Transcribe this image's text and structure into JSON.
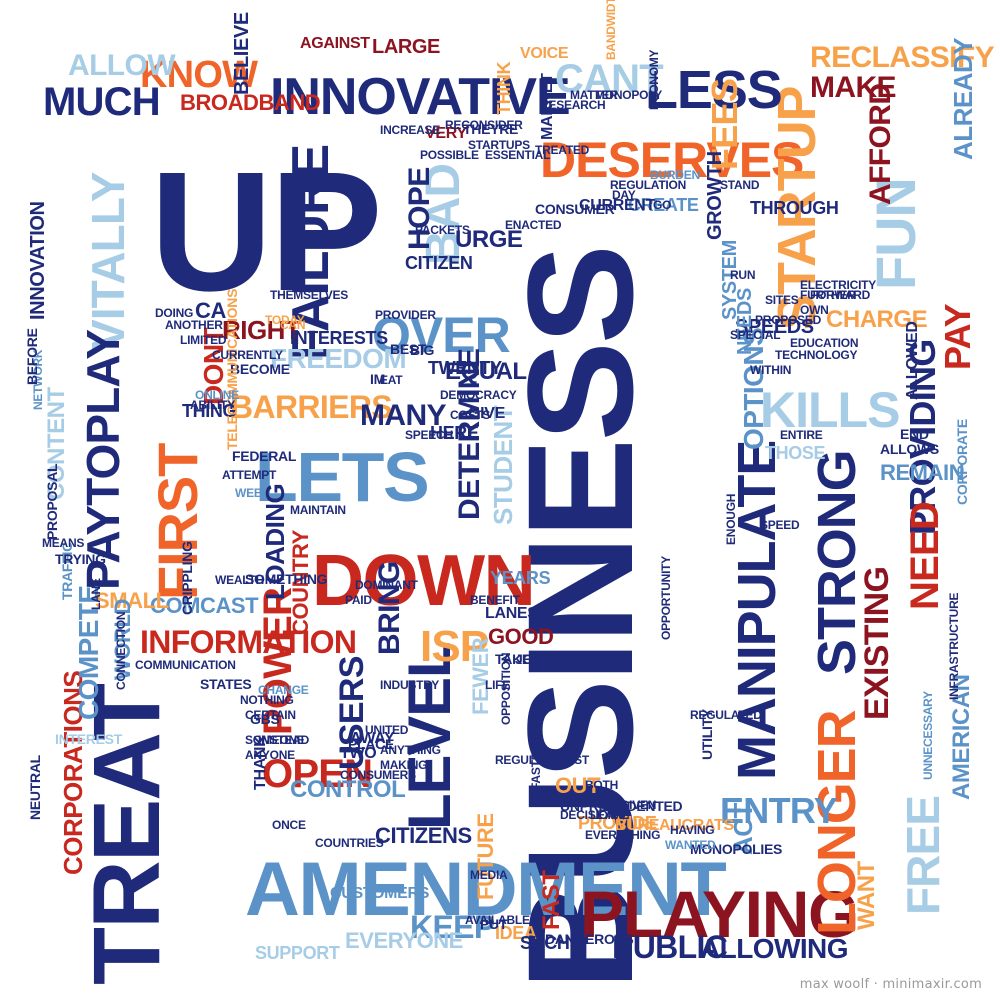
{
  "palette": {
    "navy": "#1f2b7a",
    "red": "#c8281e",
    "maroon": "#8c1420",
    "orange": "#f0642a",
    "lightorange": "#f7a24b",
    "steel": "#5b93c8",
    "lightblue": "#a6cce6"
  },
  "words": [
    {
      "text": "BUSINESS",
      "color": "navy"
    },
    {
      "text": "UP",
      "color": "navy"
    },
    {
      "text": "TREAT",
      "color": "navy"
    },
    {
      "text": "AMENDMENT",
      "color": "steel"
    },
    {
      "text": "PLAYING",
      "color": "maroon"
    },
    {
      "text": "DOWN",
      "color": "red"
    },
    {
      "text": "LETS",
      "color": "steel"
    },
    {
      "text": "INNOVATIVE",
      "color": "navy"
    },
    {
      "text": "DESERVES",
      "color": "orange"
    },
    {
      "text": "FAILURE",
      "color": "navy"
    },
    {
      "text": "FIRST",
      "color": "orange"
    },
    {
      "text": "OVER",
      "color": "steel"
    },
    {
      "text": "LEVEL",
      "color": "navy"
    },
    {
      "text": "MANIPULATE",
      "color": "navy"
    },
    {
      "text": "STARTUP",
      "color": "lightorange"
    },
    {
      "text": "LONGER",
      "color": "orange"
    },
    {
      "text": "STRONG",
      "color": "navy"
    },
    {
      "text": "KILLS",
      "color": "lightblue"
    },
    {
      "text": "VITALLY",
      "color": "lightblue"
    },
    {
      "text": "PAYTOPLAY",
      "color": "navy"
    },
    {
      "text": "LESS",
      "color": "navy"
    },
    {
      "text": "MUCH",
      "color": "navy"
    },
    {
      "text": "KNOW",
      "color": "orange"
    },
    {
      "text": "FUN",
      "color": "lightblue"
    },
    {
      "text": "BAD",
      "color": "lightblue"
    },
    {
      "text": "FREE",
      "color": "lightblue"
    },
    {
      "text": "POWER",
      "color": "red"
    },
    {
      "text": "OPEN",
      "color": "red"
    },
    {
      "text": "PROVIDING",
      "color": "navy"
    },
    {
      "text": "NEED",
      "color": "red"
    },
    {
      "text": "EXISTING",
      "color": "maroon"
    },
    {
      "text": "INFORMATION",
      "color": "red"
    },
    {
      "text": "CORPORATIONS",
      "color": "red"
    },
    {
      "text": "COMPETE",
      "color": "steel"
    },
    {
      "text": "DETERMINE",
      "color": "navy"
    },
    {
      "text": "STUDENT",
      "color": "lightblue"
    },
    {
      "text": "USERS",
      "color": "navy"
    },
    {
      "text": "BRING",
      "color": "navy"
    },
    {
      "text": "ISP",
      "color": "lightorange"
    },
    {
      "text": "ENTRY",
      "color": "steel"
    },
    {
      "text": "PUBLIC",
      "color": "navy"
    },
    {
      "text": "ALLOWING",
      "color": "navy"
    },
    {
      "text": "KEEP",
      "color": "steel"
    },
    {
      "text": "FEES",
      "color": "lightorange"
    },
    {
      "text": "CANT",
      "color": "lightblue"
    },
    {
      "text": "MAKE",
      "color": "maroon"
    },
    {
      "text": "AFFORD",
      "color": "maroon"
    },
    {
      "text": "RECLASSIFY",
      "color": "lightorange"
    },
    {
      "text": "ALREADY",
      "color": "steel"
    },
    {
      "text": "ALLOW",
      "color": "lightblue"
    },
    {
      "text": "BROADBAND",
      "color": "red"
    },
    {
      "text": "BELIEVE",
      "color": "navy"
    },
    {
      "text": "AGAINST",
      "color": "maroon"
    },
    {
      "text": "LARGE",
      "color": "maroon"
    },
    {
      "text": "VOICE",
      "color": "lightorange"
    },
    {
      "text": "HOPE",
      "color": "navy"
    },
    {
      "text": "FREEDOM",
      "color": "lightblue"
    },
    {
      "text": "BARRIERS",
      "color": "lightorange"
    },
    {
      "text": "MANY",
      "color": "navy"
    },
    {
      "text": "DONT",
      "color": "red"
    },
    {
      "text": "RIGHT",
      "color": "maroon"
    },
    {
      "text": "CHARGE",
      "color": "lightorange"
    },
    {
      "text": "PAY",
      "color": "red"
    },
    {
      "text": "OPTIONS",
      "color": "steel"
    },
    {
      "text": "ACT",
      "color": "steel"
    },
    {
      "text": "CONTROL",
      "color": "steel"
    },
    {
      "text": "COMCAST",
      "color": "steel"
    },
    {
      "text": "SMALL",
      "color": "lightorange"
    },
    {
      "text": "CONTENT",
      "color": "lightblue"
    },
    {
      "text": "INNOVATION",
      "color": "navy"
    },
    {
      "text": "AMERICAN",
      "color": "steel"
    },
    {
      "text": "WANT",
      "color": "lightorange"
    },
    {
      "text": "FUTURE",
      "color": "lightorange"
    },
    {
      "text": "FAST",
      "color": "red"
    },
    {
      "text": "GOOD",
      "color": "maroon"
    },
    {
      "text": "FEWER",
      "color": "lightblue"
    },
    {
      "text": "EVERYONE",
      "color": "lightblue"
    },
    {
      "text": "SUPPORT",
      "color": "lightblue"
    },
    {
      "text": "CUSTOMERS",
      "color": "steel"
    },
    {
      "text": "WORLD",
      "color": "steel"
    },
    {
      "text": "LOADING",
      "color": "navy"
    },
    {
      "text": "COUNTRY",
      "color": "red"
    },
    {
      "text": "EQUAL",
      "color": "navy"
    },
    {
      "text": "TWENTY",
      "color": "navy"
    },
    {
      "text": "INTERESTS",
      "color": "navy"
    },
    {
      "text": "REMAIN",
      "color": "steel"
    },
    {
      "text": "SPEEDS",
      "color": "navy"
    },
    {
      "text": "NEEDS",
      "color": "steel"
    },
    {
      "text": "SYSTEM",
      "color": "steel"
    },
    {
      "text": "GROWTH",
      "color": "navy"
    },
    {
      "text": "URGE",
      "color": "navy"
    },
    {
      "text": "CITIZEN",
      "color": "navy"
    },
    {
      "text": "CITIZENS",
      "color": "navy"
    },
    {
      "text": "THINK",
      "color": "lightorange"
    },
    {
      "text": "CREATE",
      "color": "steel"
    },
    {
      "text": "THROUGH",
      "color": "navy"
    },
    {
      "text": "CURRENT",
      "color": "navy"
    },
    {
      "text": "CONSUMER",
      "color": "navy"
    },
    {
      "text": "ALLOWED",
      "color": "navy"
    },
    {
      "text": "CORPORATE",
      "color": "steel"
    },
    {
      "text": "PROPOSAL",
      "color": "navy"
    },
    {
      "text": "TRAFFIC",
      "color": "steel"
    },
    {
      "text": "TRYING",
      "color": "navy"
    },
    {
      "text": "NETWORK",
      "color": "steel"
    },
    {
      "text": "BEFORE",
      "color": "navy"
    },
    {
      "text": "INTEREST",
      "color": "lightblue"
    },
    {
      "text": "NEUTRAL",
      "color": "navy"
    },
    {
      "text": "STATES",
      "color": "navy"
    },
    {
      "text": "COMMUNICATION",
      "color": "navy"
    },
    {
      "text": "CRIPPLING",
      "color": "navy"
    },
    {
      "text": "LANES",
      "color": "navy"
    },
    {
      "text": "IDEA",
      "color": "lightorange"
    },
    {
      "text": "SUCH",
      "color": "navy"
    },
    {
      "text": "DANGEROUS",
      "color": "navy"
    },
    {
      "text": "PROVIDE",
      "color": "lightorange"
    },
    {
      "text": "BUREAUCRATS",
      "color": "lightorange"
    },
    {
      "text": "UNPRECEDENTED",
      "color": "navy"
    },
    {
      "text": "OUT",
      "color": "lightorange"
    },
    {
      "text": "MONOPOLIES",
      "color": "navy"
    },
    {
      "text": "WANTED",
      "color": "steel"
    },
    {
      "text": "UTILITY",
      "color": "navy"
    },
    {
      "text": "TWO",
      "color": "navy"
    },
    {
      "text": "PLACE",
      "color": "navy"
    },
    {
      "text": "AWAY",
      "color": "navy"
    },
    {
      "text": "THANK",
      "color": "navy"
    },
    {
      "text": "THING",
      "color": "navy"
    },
    {
      "text": "BECOME",
      "color": "navy"
    },
    {
      "text": "TELECOMMUNICATIONS",
      "color": "lightorange"
    },
    {
      "text": "FEDERAL",
      "color": "navy"
    },
    {
      "text": "YEARS",
      "color": "steel"
    },
    {
      "text": "HERE",
      "color": "navy"
    },
    {
      "text": "GIVE",
      "color": "navy"
    },
    {
      "text": "THOSE",
      "color": "lightblue"
    },
    {
      "text": "ALLOWS",
      "color": "navy"
    },
    {
      "text": "END",
      "color": "navy"
    },
    {
      "text": "MARKET",
      "color": "navy"
    },
    {
      "text": "VERY",
      "color": "maroon"
    },
    {
      "text": "THEYRE",
      "color": "navy"
    },
    {
      "text": "BANDWIDTH",
      "color": "lightorange"
    },
    {
      "text": "ECONOMY",
      "color": "navy"
    },
    {
      "text": "BURDEN",
      "color": "steel"
    },
    {
      "text": "CA",
      "color": "navy"
    },
    {
      "text": "ANOTHER",
      "color": "navy"
    },
    {
      "text": "TODAY",
      "color": "lightorange"
    },
    {
      "text": "CAN",
      "color": "lightorange"
    },
    {
      "text": "MAINTAIN",
      "color": "navy"
    },
    {
      "text": "EAT",
      "color": "navy"
    },
    {
      "text": "DEMOCRACY",
      "color": "navy"
    },
    {
      "text": "SPEECH",
      "color": "navy"
    },
    {
      "text": "INFRASTRUCTURE",
      "color": "navy"
    },
    {
      "text": "EDUCATION",
      "color": "navy"
    },
    {
      "text": "GO",
      "color": "navy"
    },
    {
      "text": "DAY",
      "color": "navy"
    },
    {
      "text": "ONLINE",
      "color": "steel"
    },
    {
      "text": "WEB",
      "color": "steel"
    },
    {
      "text": "LANE",
      "color": "navy"
    },
    {
      "text": "CONNECTION",
      "color": "navy"
    },
    {
      "text": "GBS",
      "color": "navy"
    },
    {
      "text": "INSTEAD",
      "color": "navy"
    },
    {
      "text": "NOTHING",
      "color": "navy"
    },
    {
      "text": "CHANGE",
      "color": "steel"
    },
    {
      "text": "INDUSTRY",
      "color": "navy"
    },
    {
      "text": "ANYTHING",
      "color": "navy"
    },
    {
      "text": "SOMETHING",
      "color": "navy"
    },
    {
      "text": "REGULATED",
      "color": "navy"
    },
    {
      "text": "CONSUMERS",
      "color": "navy"
    },
    {
      "text": "PUT",
      "color": "navy"
    },
    {
      "text": "COUNTRIES",
      "color": "navy"
    },
    {
      "text": "MEDIA",
      "color": "navy"
    },
    {
      "text": "AVAILABLE",
      "color": "navy"
    },
    {
      "text": "ONCE",
      "color": "navy"
    },
    {
      "text": "EVERYTHING",
      "color": "navy"
    },
    {
      "text": "GIVEN",
      "color": "navy"
    },
    {
      "text": "BOTH",
      "color": "navy"
    },
    {
      "text": "DOING",
      "color": "navy"
    },
    {
      "text": "UNNECESSARY",
      "color": "steel"
    },
    {
      "text": "DOMINANT",
      "color": "navy"
    },
    {
      "text": "PAID",
      "color": "navy"
    },
    {
      "text": "MEANS",
      "color": "navy"
    },
    {
      "text": "CURRENTLY",
      "color": "navy"
    },
    {
      "text": "ABILITY",
      "color": "navy"
    },
    {
      "text": "ATTEMPT",
      "color": "navy"
    },
    {
      "text": "WITHIN",
      "color": "navy"
    },
    {
      "text": "TECHNOLOGY",
      "color": "navy"
    },
    {
      "text": "FURTHER",
      "color": "navy"
    },
    {
      "text": "LIMITED",
      "color": "navy"
    },
    {
      "text": "POSSIBLE",
      "color": "navy"
    },
    {
      "text": "ESSENTIAL",
      "color": "navy"
    },
    {
      "text": "THEMSELVES",
      "color": "navy"
    },
    {
      "text": "PROVIDER",
      "color": "navy"
    },
    {
      "text": "STARTUPS",
      "color": "navy"
    },
    {
      "text": "PACKETS",
      "color": "navy"
    },
    {
      "text": "RECONSIDER",
      "color": "navy"
    },
    {
      "text": "REGULATION",
      "color": "navy"
    },
    {
      "text": "ENACTED",
      "color": "navy"
    },
    {
      "text": "MONOPOLY",
      "color": "navy"
    },
    {
      "text": "STAND",
      "color": "navy"
    },
    {
      "text": "TREATED",
      "color": "navy"
    },
    {
      "text": "SPECIAL",
      "color": "navy"
    },
    {
      "text": "MATTER",
      "color": "navy"
    },
    {
      "text": "RESEARCH",
      "color": "navy"
    },
    {
      "text": "INCREASE",
      "color": "navy"
    },
    {
      "text": "BEST",
      "color": "navy"
    },
    {
      "text": "BIG",
      "color": "navy"
    },
    {
      "text": "IM",
      "color": "navy"
    },
    {
      "text": "REGULATIONIST",
      "color": "navy"
    },
    {
      "text": "OPPOSITION",
      "color": "navy"
    },
    {
      "text": "LIFE",
      "color": "navy"
    },
    {
      "text": "TAKE",
      "color": "navy"
    },
    {
      "text": "JOB",
      "color": "navy"
    },
    {
      "text": "CERTAIN",
      "color": "navy"
    },
    {
      "text": "ANYONE",
      "color": "navy"
    },
    {
      "text": "SOMEONE",
      "color": "navy"
    },
    {
      "text": "MAKING",
      "color": "navy"
    },
    {
      "text": "LEAVE",
      "color": "navy"
    },
    {
      "text": "HAVING",
      "color": "navy"
    },
    {
      "text": "DECISION",
      "color": "navy"
    },
    {
      "text": "FASTER",
      "color": "navy"
    },
    {
      "text": "SITES",
      "color": "navy"
    },
    {
      "text": "ENOUGH",
      "color": "navy"
    },
    {
      "text": "SPEED",
      "color": "navy"
    },
    {
      "text": "COSTS",
      "color": "navy"
    },
    {
      "text": "OPPORTUNITY",
      "color": "navy"
    },
    {
      "text": "BENEFIT",
      "color": "navy"
    },
    {
      "text": "UNITED",
      "color": "navy"
    },
    {
      "text": "WEALTH",
      "color": "navy"
    },
    {
      "text": "ENTIRE",
      "color": "navy"
    },
    {
      "text": "ELECTRICITY",
      "color": "navy"
    },
    {
      "text": "RUN",
      "color": "navy"
    },
    {
      "text": "PROPOSED",
      "color": "navy"
    },
    {
      "text": "OWN",
      "color": "navy"
    },
    {
      "text": "FORWARD",
      "color": "navy"
    }
  ],
  "credit": "max woolf · minimaxir.com"
}
